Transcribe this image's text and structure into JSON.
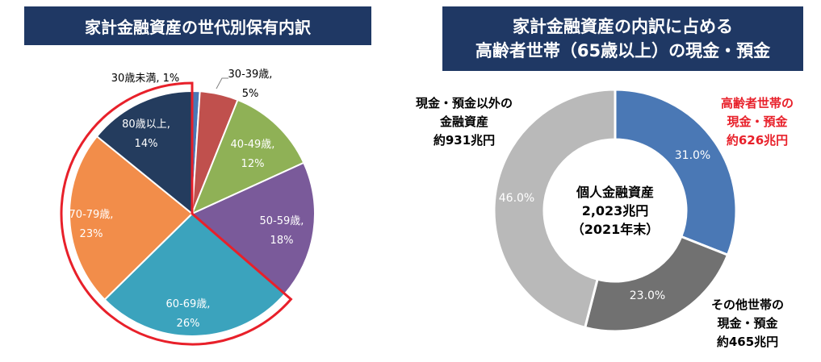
{
  "left_title": "家計金融資産の世代別保有内訳",
  "right_title": {
    "line1": "家計金融資産の内訳に占める",
    "line2": "高齢者世帯（65歳以上）の現金・預金"
  },
  "colors": {
    "title_bg": "#1f3864",
    "highlight": "#e8202a",
    "under30": "#4a78b5",
    "age30": "#c0504d",
    "age40": "#8fb156",
    "age50": "#7a5a9a",
    "age60": "#3ba3bd",
    "age70": "#f28d4a",
    "age80": "#243c5e",
    "elderly_cash": "#4a78b5",
    "other_cash": "#717171",
    "non_cash": "#b9b9b9"
  },
  "chart_data": [
    {
      "type": "pie",
      "title": "家計金融資産の世代別保有内訳",
      "slices": [
        {
          "label": "30歳未満",
          "value": 1,
          "value_label": "1%",
          "color_key": "under30"
        },
        {
          "label": "30-39歳",
          "value": 5,
          "value_label": "5%",
          "color_key": "age30"
        },
        {
          "label": "40-49歳",
          "value": 12,
          "value_label": "12%",
          "color_key": "age40"
        },
        {
          "label": "50-59歳",
          "value": 18,
          "value_label": "18%",
          "color_key": "age50"
        },
        {
          "label": "60-69歳",
          "value": 26,
          "value_label": "26%",
          "color_key": "age60"
        },
        {
          "label": "70-79歳",
          "value": 23,
          "value_label": "23%",
          "color_key": "age70"
        },
        {
          "label": "80歳以上",
          "value": 14,
          "value_label": "14%",
          "color_key": "age80"
        }
      ],
      "highlighted": [
        "60-69歳",
        "70-79歳",
        "80歳以上"
      ]
    },
    {
      "type": "pie",
      "title": "家計金融資産の内訳に占める高齢者世帯（65歳以上）の現金・預金",
      "donut": true,
      "center_text": [
        "個人金融資産",
        "2,023兆円",
        "（2021年末）"
      ],
      "slices": [
        {
          "label_lines": [
            "高齢者世帯の",
            "現金・預金",
            "約626兆円"
          ],
          "value": 31.0,
          "value_label": "31.0%",
          "color_key": "elderly_cash",
          "label_color": "#e8202a"
        },
        {
          "label_lines": [
            "その他世帯の",
            "現金・預金",
            "約465兆円"
          ],
          "value": 23.0,
          "value_label": "23.0%",
          "color_key": "other_cash",
          "label_color": "#000000"
        },
        {
          "label_lines": [
            "現金・預金以外の",
            "金融資産",
            "約931兆円"
          ],
          "value": 46.0,
          "value_label": "46.0%",
          "color_key": "non_cash",
          "label_color": "#000000"
        }
      ]
    }
  ]
}
